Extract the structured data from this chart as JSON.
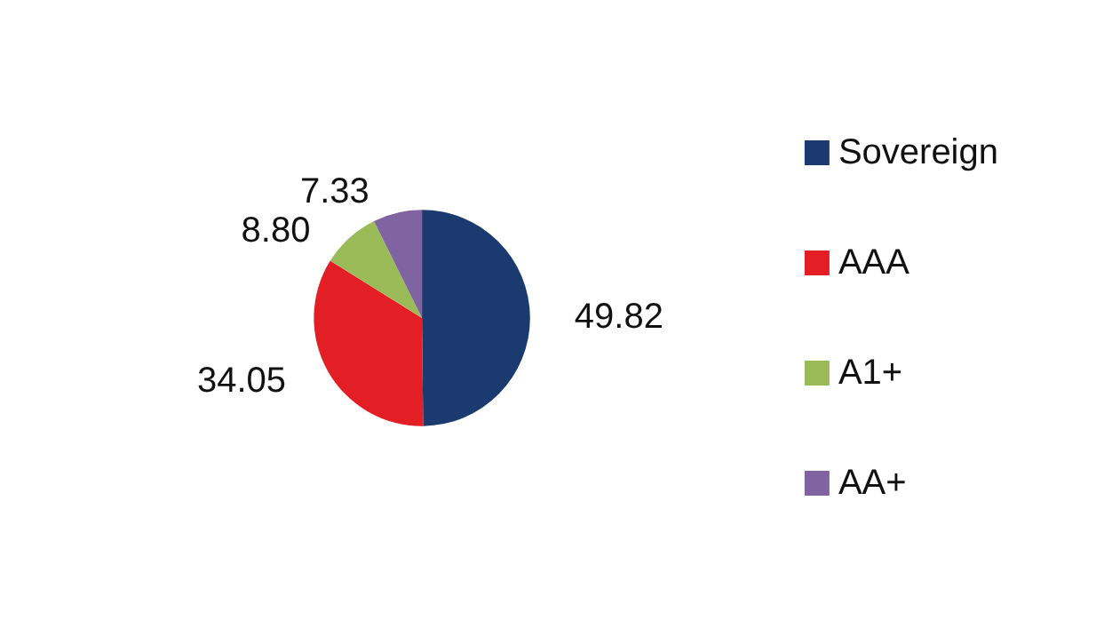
{
  "chart_data": {
    "type": "pie",
    "categories": [
      "Sovereign",
      "AAA",
      "A1+",
      "AA+"
    ],
    "values": [
      49.82,
      34.05,
      8.8,
      7.33
    ],
    "colors": [
      "#1b3a6f",
      "#e31e24",
      "#9bbb59",
      "#8064a2"
    ],
    "value_labels": [
      "49.82",
      "34.05",
      "8.80",
      "7.33"
    ],
    "legend": "right"
  }
}
